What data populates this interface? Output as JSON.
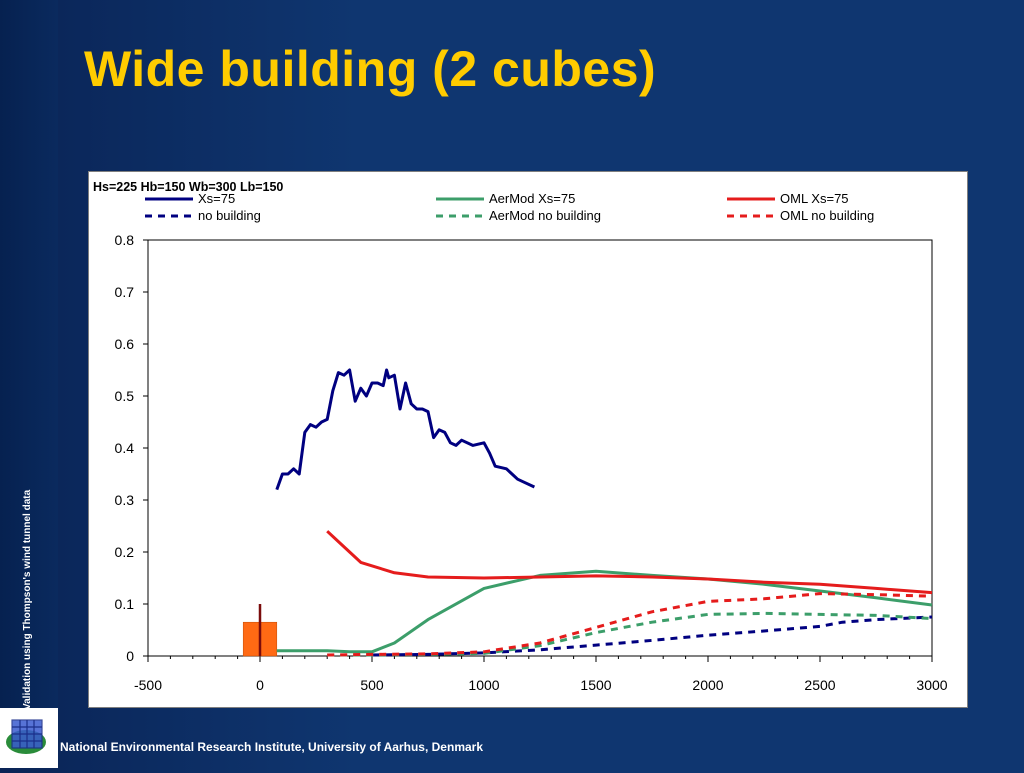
{
  "slide": {
    "title": "Wide building (2 cubes)",
    "side_text": "Validation using Thompson's wind tunnel data",
    "footer": "National Environmental Research Institute, University of Aarhus, Denmark"
  },
  "colors": {
    "title": "#ffcc00",
    "background": "#0f3670",
    "xs75": "#000080",
    "aermod": "#3c9e6a",
    "oml": "#e51c1c",
    "building": "#ff6a14",
    "source_stack": "#7a0c0c"
  },
  "icons": {
    "logo": "nerI-globe-logo-icon"
  },
  "chart_data": {
    "type": "line",
    "title": "Hs=225 Hb=150 Wb=300 Lb=150",
    "xlabel": "",
    "ylabel": "",
    "xlim": [
      -500,
      3000
    ],
    "ylim": [
      0,
      0.8
    ],
    "x_ticks": [
      "-500",
      "0",
      "500",
      "1000",
      "1500",
      "2000",
      "2500",
      "3000"
    ],
    "y_ticks": [
      "0",
      "0.1",
      "0.2",
      "0.3",
      "0.4",
      "0.5",
      "0.6",
      "0.7",
      "0.8"
    ],
    "legend_position": "top",
    "building": {
      "x_start": -75,
      "x_end": 75,
      "height": 0.065
    },
    "stack": {
      "x": 0,
      "height": 0.1
    },
    "series": [
      {
        "name": "Xs=75",
        "color": "#000080",
        "dash": "solid",
        "x": [
          75,
          100,
          125,
          150,
          175,
          200,
          225,
          250,
          275,
          300,
          325,
          350,
          375,
          400,
          425,
          450,
          475,
          500,
          525,
          550,
          565,
          575,
          600,
          625,
          650,
          675,
          700,
          725,
          750,
          775,
          800,
          825,
          850,
          875,
          900,
          950,
          1000,
          1025,
          1050,
          1100,
          1125,
          1150,
          1175,
          1225
        ],
        "y": [
          0.32,
          0.35,
          0.35,
          0.36,
          0.35,
          0.43,
          0.445,
          0.44,
          0.45,
          0.455,
          0.51,
          0.545,
          0.54,
          0.55,
          0.49,
          0.515,
          0.5,
          0.525,
          0.525,
          0.52,
          0.55,
          0.535,
          0.54,
          0.475,
          0.525,
          0.485,
          0.475,
          0.475,
          0.47,
          0.42,
          0.435,
          0.43,
          0.41,
          0.405,
          0.415,
          0.405,
          0.41,
          0.39,
          0.365,
          0.36,
          0.35,
          0.34,
          0.335,
          0.325
        ]
      },
      {
        "name": "no building",
        "color": "#000080",
        "dash": "dashed",
        "x": [
          500,
          750,
          1000,
          1250,
          1500,
          1750,
          2000,
          2250,
          2500,
          2600,
          2750,
          3000
        ],
        "y": [
          0.002,
          0.003,
          0.006,
          0.012,
          0.021,
          0.03,
          0.04,
          0.048,
          0.057,
          0.065,
          0.07,
          0.075
        ]
      },
      {
        "name": "AerMod Xs=75",
        "color": "#3c9e6a",
        "dash": "solid",
        "x": [
          75,
          200,
          300,
          400,
          500,
          600,
          750,
          1000,
          1250,
          1500,
          1750,
          2000,
          2250,
          2500,
          2750,
          3000
        ],
        "y": [
          0.01,
          0.01,
          0.01,
          0.008,
          0.008,
          0.025,
          0.07,
          0.13,
          0.155,
          0.163,
          0.155,
          0.148,
          0.138,
          0.125,
          0.112,
          0.098
        ]
      },
      {
        "name": "AerMod no building",
        "color": "#3c9e6a",
        "dash": "dashed",
        "x": [
          300,
          500,
          750,
          1000,
          1250,
          1500,
          1750,
          2000,
          2250,
          2500,
          2750,
          3000
        ],
        "y": [
          0.002,
          0.002,
          0.003,
          0.005,
          0.02,
          0.045,
          0.065,
          0.08,
          0.082,
          0.08,
          0.078,
          0.072
        ]
      },
      {
        "name": "OML Xs=75",
        "color": "#e51c1c",
        "dash": "solid",
        "x": [
          300,
          350,
          450,
          600,
          750,
          1000,
          1250,
          1500,
          1750,
          2000,
          2250,
          2500,
          2750,
          3000
        ],
        "y": [
          0.24,
          0.22,
          0.18,
          0.16,
          0.152,
          0.15,
          0.152,
          0.154,
          0.152,
          0.148,
          0.142,
          0.138,
          0.13,
          0.122
        ]
      },
      {
        "name": "OML no building",
        "color": "#e51c1c",
        "dash": "dashed",
        "x": [
          300,
          500,
          750,
          1000,
          1250,
          1500,
          1750,
          2000,
          2250,
          2500,
          2750,
          3000
        ],
        "y": [
          0.002,
          0.003,
          0.004,
          0.008,
          0.025,
          0.055,
          0.085,
          0.105,
          0.11,
          0.12,
          0.118,
          0.115
        ]
      }
    ]
  }
}
